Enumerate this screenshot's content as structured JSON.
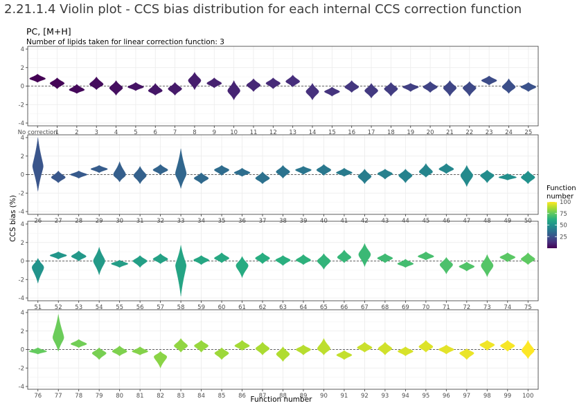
{
  "page": {
    "heading": "2.21.1.4 Violin plot - CCS bias distribution for each internal CCS correction function"
  },
  "chart_data": {
    "type": "violin",
    "title": "PC, [M+H]",
    "caption": "Number of lipids taken for linear correction function: 3",
    "xlabel": "Function number",
    "ylabel": "CCS bias (%)",
    "ylim": [
      -4,
      4
    ],
    "yticks": [
      -4,
      -2,
      0,
      2,
      4
    ],
    "reference_line": 0,
    "grid": true,
    "legend": {
      "title_line1": "Function",
      "title_line2": "number",
      "position": "right",
      "scale": "viridis",
      "range": [
        0,
        100
      ],
      "ticks": [
        25,
        50,
        75,
        100
      ]
    },
    "panels": [
      {
        "labels": [
          "No correction",
          "1",
          "2",
          "3",
          "4",
          "5",
          "6",
          "7",
          "8",
          "9",
          "10",
          "11",
          "12",
          "13",
          "14",
          "15",
          "16",
          "17",
          "18",
          "19",
          "20",
          "21",
          "22",
          "23",
          "24",
          "25"
        ],
        "centers": [
          0.8,
          0.3,
          -0.4,
          0.2,
          -0.2,
          -0.1,
          -0.5,
          -0.3,
          0.6,
          0.3,
          -0.5,
          0.1,
          0.3,
          0.5,
          -0.6,
          -0.6,
          -0.1,
          -0.5,
          -0.3,
          -0.1,
          -0.1,
          -0.2,
          -0.2,
          0.6,
          -0.1,
          -0.1
        ],
        "mins": [
          0.4,
          -0.3,
          -0.8,
          -0.4,
          -1.0,
          -0.5,
          -1.0,
          -1.0,
          -0.4,
          -0.2,
          -1.5,
          -0.6,
          -0.3,
          -0.1,
          -1.5,
          -1.1,
          -0.7,
          -1.3,
          -1.1,
          -0.6,
          -0.7,
          -1.1,
          -1.1,
          0.1,
          -0.8,
          -0.6
        ],
        "maxs": [
          1.3,
          0.9,
          0.2,
          1.0,
          0.6,
          0.4,
          0.3,
          0.4,
          1.5,
          0.9,
          0.6,
          0.8,
          0.9,
          1.2,
          0.3,
          -0.1,
          0.6,
          0.3,
          0.4,
          0.3,
          0.5,
          0.6,
          0.5,
          1.1,
          0.8,
          0.4
        ]
      },
      {
        "labels": [
          "26",
          "27",
          "28",
          "29",
          "30",
          "31",
          "32",
          "33",
          "34",
          "35",
          "36",
          "37",
          "38",
          "39",
          "40",
          "41",
          "42",
          "43",
          "44",
          "45",
          "46",
          "47",
          "48",
          "49",
          "50"
        ],
        "centers": [
          0.9,
          -0.3,
          0.0,
          0.6,
          0.0,
          -0.1,
          0.5,
          0.1,
          -0.4,
          0.5,
          0.2,
          -0.4,
          0.3,
          0.5,
          0.5,
          0.2,
          -0.2,
          0.1,
          -0.1,
          0.3,
          0.6,
          -0.1,
          -0.1,
          -0.3,
          -0.3
        ],
        "mins": [
          -1.8,
          -0.9,
          -0.4,
          0.2,
          -0.8,
          -1.0,
          0.0,
          -1.5,
          -1.0,
          -0.1,
          -0.2,
          -1.0,
          -0.4,
          0.0,
          -0.1,
          -0.2,
          -1.0,
          -0.5,
          -0.9,
          -0.3,
          0.1,
          -1.3,
          -0.9,
          -0.6,
          -1.0
        ],
        "maxs": [
          4.0,
          0.4,
          0.4,
          1.0,
          1.4,
          0.9,
          1.1,
          2.8,
          0.2,
          1.0,
          0.7,
          0.3,
          1.0,
          0.9,
          1.1,
          0.7,
          0.6,
          0.6,
          0.6,
          1.2,
          1.2,
          1.0,
          0.5,
          0.1,
          0.4
        ]
      },
      {
        "labels": [
          "51",
          "52",
          "53",
          "54",
          "55",
          "56",
          "57",
          "58",
          "59",
          "60",
          "61",
          "62",
          "63",
          "64",
          "65",
          "66",
          "67",
          "68",
          "69",
          "70",
          "71",
          "72",
          "73",
          "74",
          "75"
        ],
        "centers": [
          -0.7,
          0.6,
          0.5,
          0.0,
          -0.3,
          0.0,
          0.2,
          -0.5,
          0.1,
          0.3,
          -0.5,
          0.3,
          0.1,
          0.1,
          0.0,
          0.4,
          0.7,
          0.3,
          -0.3,
          0.5,
          -0.4,
          -0.6,
          -0.5,
          0.4,
          0.2
        ],
        "mins": [
          -2.4,
          0.2,
          0.0,
          -1.5,
          -0.7,
          -0.7,
          -0.3,
          -3.8,
          -0.4,
          -0.2,
          -1.8,
          -0.3,
          -0.5,
          -0.4,
          -0.9,
          -0.2,
          -0.6,
          -0.2,
          -0.7,
          0.1,
          -1.4,
          -1.1,
          -1.7,
          -0.1,
          -0.4
        ],
        "maxs": [
          0.3,
          1.0,
          1.1,
          1.5,
          0.1,
          0.6,
          0.8,
          1.7,
          0.6,
          0.9,
          0.5,
          0.9,
          0.6,
          0.7,
          0.8,
          1.2,
          1.9,
          0.8,
          0.2,
          1.0,
          0.4,
          -0.1,
          0.7,
          0.9,
          0.9
        ]
      },
      {
        "labels": [
          "76",
          "77",
          "78",
          "79",
          "80",
          "81",
          "82",
          "83",
          "84",
          "85",
          "86",
          "87",
          "88",
          "89",
          "90",
          "91",
          "92",
          "93",
          "94",
          "95",
          "96",
          "97",
          "98",
          "99",
          "100"
        ],
        "centers": [
          -0.2,
          1.3,
          0.6,
          -0.4,
          -0.2,
          -0.2,
          -0.8,
          0.4,
          0.4,
          -0.4,
          0.4,
          0.1,
          -0.5,
          0.0,
          0.1,
          -0.6,
          0.2,
          0.1,
          -0.2,
          0.3,
          0.0,
          -0.4,
          0.5,
          0.4,
          -0.1
        ],
        "mins": [
          -0.5,
          -0.2,
          0.2,
          -1.1,
          -0.7,
          -0.6,
          -2.0,
          -0.3,
          -0.3,
          -1.1,
          -0.1,
          -0.6,
          -1.3,
          -0.6,
          -0.6,
          -1.1,
          -0.3,
          -0.6,
          -0.7,
          -0.3,
          -0.5,
          -1.1,
          -0.1,
          -0.2,
          -1.0
        ],
        "maxs": [
          0.2,
          3.8,
          1.1,
          0.2,
          0.4,
          0.3,
          -0.2,
          1.2,
          1.0,
          0.2,
          1.0,
          0.8,
          0.3,
          0.5,
          1.2,
          -0.1,
          0.8,
          0.8,
          0.3,
          1.0,
          0.5,
          0.1,
          1.0,
          1.0,
          1.0
        ]
      }
    ]
  }
}
